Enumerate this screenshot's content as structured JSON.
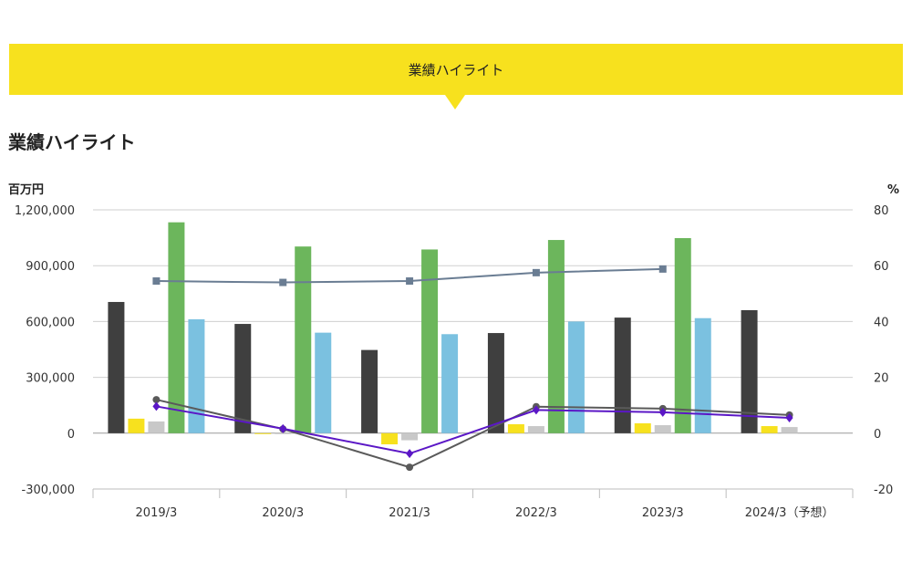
{
  "banner": {
    "title": "業績ハイライト"
  },
  "page": {
    "heading": "業績ハイライト"
  },
  "chart_data": {
    "type": "bar",
    "categories": [
      "2019/3",
      "2020/3",
      "2021/3",
      "2022/3",
      "2023/3",
      "2024/3（予想）"
    ],
    "left_axis": {
      "unit": "百万円",
      "ylim": [
        -300000,
        1200000
      ],
      "ticks": [
        "1,200,000",
        "900,000",
        "600,000",
        "300,000",
        "0",
        "-300,000"
      ]
    },
    "right_axis": {
      "unit": "%",
      "ylim": [
        -20,
        80
      ],
      "ticks": [
        "80",
        "60",
        "40",
        "20",
        "0",
        "-20"
      ]
    },
    "grid": true,
    "bar_series": [
      {
        "color": "#3f3f3f",
        "values": [
          705000,
          587000,
          447000,
          538000,
          621000,
          661000
        ]
      },
      {
        "color": "#f7e11e",
        "values": [
          78000,
          -2000,
          -60000,
          48000,
          53000,
          38000
        ]
      },
      {
        "color": "#c8c8c8",
        "values": [
          63000,
          0,
          -38000,
          38000,
          43000,
          33000
        ]
      },
      {
        "color": "#6cb65c",
        "values": [
          1133000,
          1003000,
          987000,
          1038000,
          1048000,
          null
        ]
      },
      {
        "color": "#7bc1e0",
        "values": [
          612000,
          540000,
          532000,
          600000,
          618000,
          null
        ]
      }
    ],
    "line_series": [
      {
        "color": "#6a7d93",
        "marker": "square",
        "values": [
          54.5,
          54.0,
          54.5,
          57.5,
          58.8,
          null
        ]
      },
      {
        "color": "#5a5a5a",
        "marker": "circle",
        "values": [
          12.0,
          1.5,
          -12.2,
          9.5,
          8.8,
          6.5
        ]
      },
      {
        "color": "#5b17c6",
        "marker": "diamond",
        "values": [
          9.6,
          1.6,
          -7.3,
          8.3,
          7.5,
          5.5
        ]
      }
    ]
  }
}
